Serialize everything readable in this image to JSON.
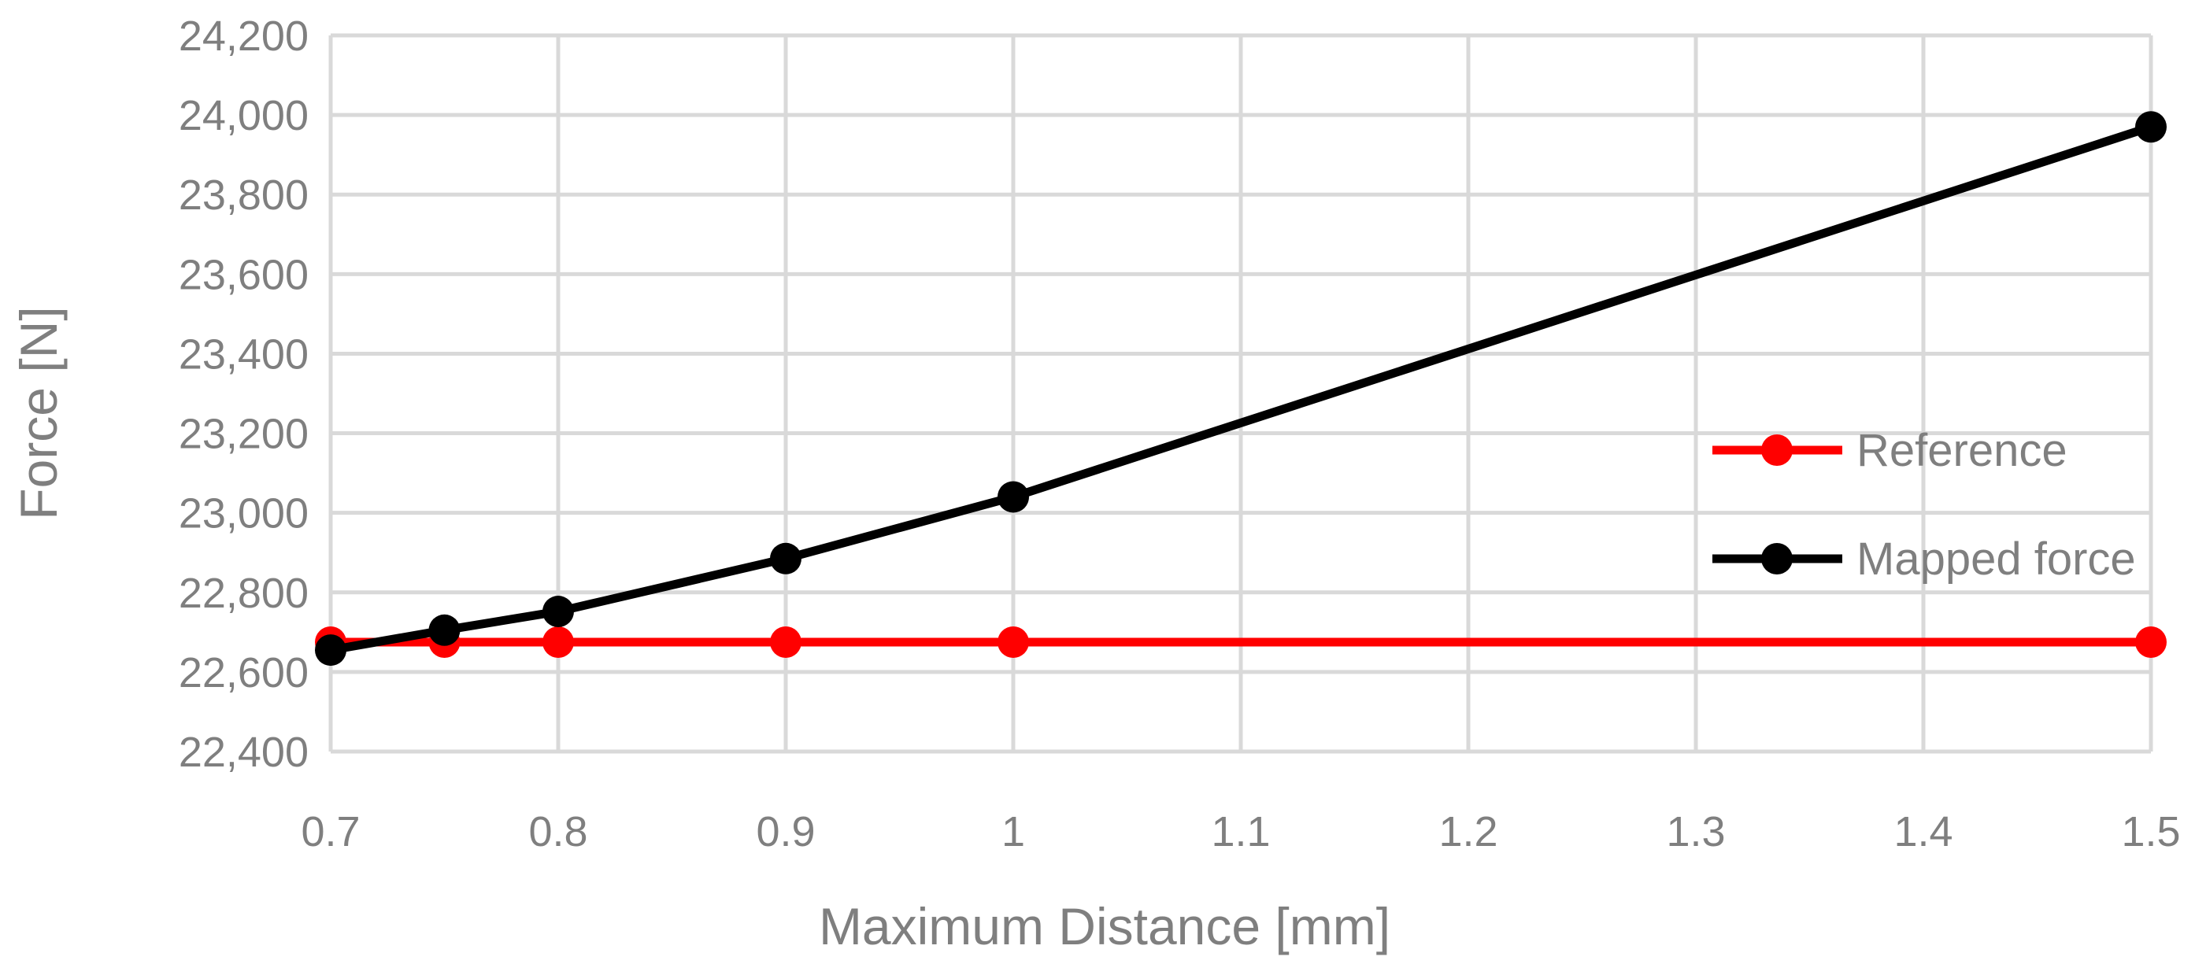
{
  "chart_data": {
    "type": "line",
    "title": "",
    "xlabel": "Maximum Distance [mm]",
    "ylabel": "Force [N]",
    "xlim": [
      0.7,
      1.5
    ],
    "ylim": [
      22400,
      24200
    ],
    "x_ticks": [
      0.7,
      0.8,
      0.9,
      1.0,
      1.1,
      1.2,
      1.3,
      1.4,
      1.5
    ],
    "x_tick_labels": [
      "0.7",
      "0.8",
      "0.9",
      "1",
      "1.1",
      "1.2",
      "1.3",
      "1.4",
      "1.5"
    ],
    "y_ticks": [
      22400,
      22600,
      22800,
      23000,
      23200,
      23400,
      23600,
      23800,
      24000,
      24200
    ],
    "y_tick_labels": [
      "22,400",
      "22,600",
      "22,800",
      "23,000",
      "23,200",
      "23,400",
      "23,600",
      "23,800",
      "24,000",
      "24,200"
    ],
    "grid": true,
    "legend_position": "right",
    "series": [
      {
        "name": "Reference",
        "color": "#ff0000",
        "x": [
          0.7,
          0.75,
          0.8,
          0.9,
          1.0,
          1.5
        ],
        "y": [
          22675,
          22675,
          22675,
          22675,
          22675,
          22675
        ]
      },
      {
        "name": "Mapped force",
        "color": "#000000",
        "x": [
          0.7,
          0.75,
          0.8,
          0.9,
          1.0,
          1.5
        ],
        "y": [
          22655,
          22705,
          22752,
          22885,
          23040,
          23970
        ]
      }
    ]
  }
}
